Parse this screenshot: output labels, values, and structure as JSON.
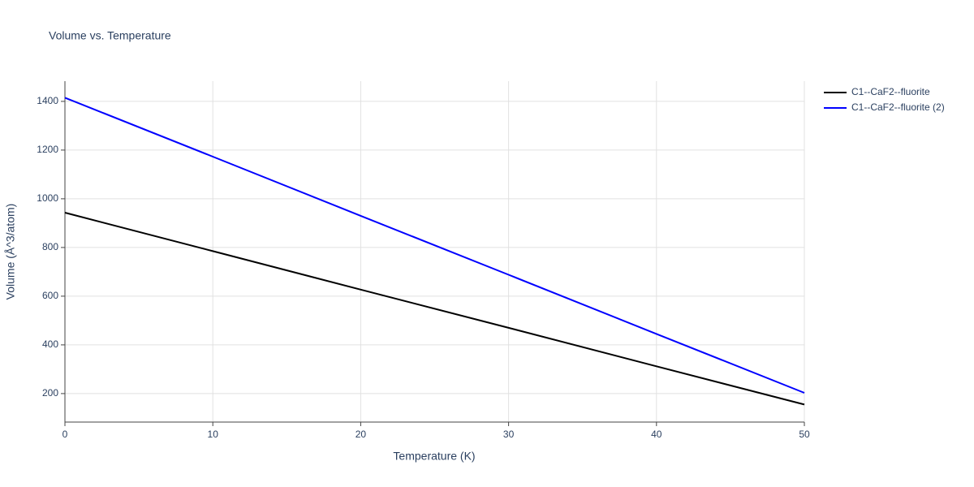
{
  "chart_data": {
    "type": "line",
    "title": "Volume vs. Temperature",
    "x_label": "Temperature (K)",
    "y_label": "Volume (Å^3/atom)",
    "x": [
      0,
      10,
      20,
      30,
      40,
      50
    ],
    "series": [
      {
        "name": "C1--CaF2--fluorite",
        "color": "#000000",
        "values": [
          943,
          785,
          627,
          470,
          312,
          155
        ]
      },
      {
        "name": "C1--CaF2--fluorite (2)",
        "color": "#0000ff",
        "values": [
          1415,
          1173,
          930,
          688,
          445,
          203
        ]
      }
    ],
    "xlim": [
      0,
      50
    ],
    "xticks": [
      0,
      10,
      20,
      30,
      40,
      50
    ],
    "ylim": [
      83,
      1483
    ],
    "yticks": [
      200,
      400,
      600,
      800,
      1000,
      1200,
      1400
    ],
    "grid": true,
    "legend": "right"
  }
}
